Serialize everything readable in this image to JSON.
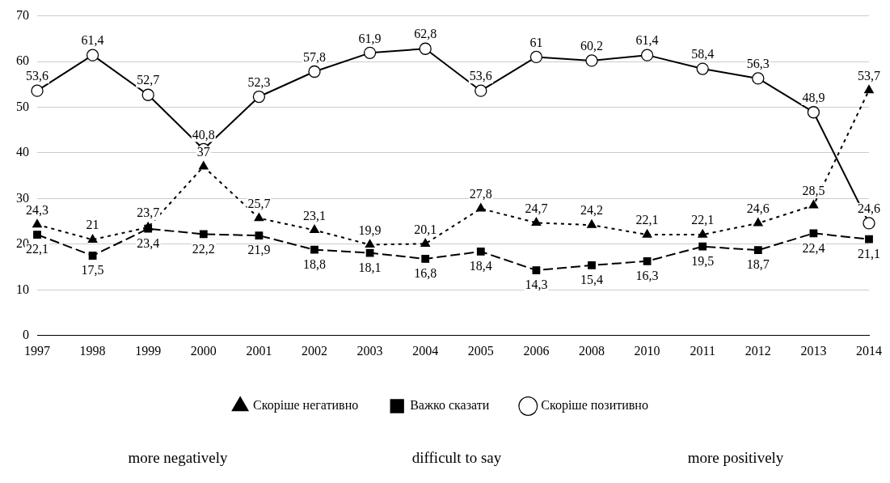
{
  "chart_data": {
    "type": "line",
    "categories": [
      "1997",
      "1998",
      "1999",
      "2000",
      "2001",
      "2002",
      "2003",
      "2004",
      "2005",
      "2006",
      "2008",
      "2010",
      "2011",
      "2012",
      "2013",
      "2014"
    ],
    "ylim": [
      0,
      70
    ],
    "yticks": [
      0,
      10,
      20,
      30,
      40,
      50,
      60,
      70
    ],
    "grid": "y",
    "legend": "bottom",
    "series": [
      {
        "name": "Скоріше негативно",
        "color": "#000000",
        "marker": "triangle",
        "line_style": "dotted",
        "values": [
          24.3,
          21,
          23.7,
          37,
          25.7,
          23.1,
          19.9,
          20.1,
          27.8,
          24.7,
          24.2,
          22.1,
          22.1,
          24.6,
          28.5,
          53.7
        ],
        "value_labels": [
          "24,3",
          "21",
          "23,7",
          "37",
          "25,7",
          "23,1",
          "19,9",
          "20,1",
          "27,8",
          "24,7",
          "24,2",
          "22,1",
          "22,1",
          "24,6",
          "28,5",
          "53,7"
        ]
      },
      {
        "name": "Важко сказати",
        "color": "#000000",
        "marker": "square",
        "line_style": "dashed",
        "values": [
          22.1,
          17.5,
          23.4,
          22.2,
          21.9,
          18.8,
          18.1,
          16.8,
          18.4,
          14.3,
          15.4,
          16.3,
          19.5,
          18.7,
          22.4,
          21.1
        ],
        "value_labels": [
          "22,1",
          "17,5",
          "23,4",
          "22,2",
          "21,9",
          "18,8",
          "18,1",
          "16,8",
          "18,4",
          "14,3",
          "15,4",
          "16,3",
          "19,5",
          "18,7",
          "22,4",
          "21,1"
        ]
      },
      {
        "name": "Скоріше позитивно",
        "color": "#000000",
        "marker": "circle",
        "line_style": "solid",
        "values": [
          53.6,
          61.4,
          52.7,
          40.8,
          52.3,
          57.8,
          61.9,
          62.8,
          53.6,
          61,
          60.2,
          61.4,
          58.4,
          56.3,
          48.9,
          24.6
        ],
        "value_labels": [
          "53,6",
          "61,4",
          "52,7",
          "40,8",
          "52,3",
          "57,8",
          "61,9",
          "62,8",
          "53,6",
          "61",
          "60,2",
          "61,4",
          "58,4",
          "56,3",
          "48,9",
          "24,6"
        ]
      }
    ],
    "annotations": [
      "more negatively",
      "difficult to say",
      "more positively"
    ]
  }
}
